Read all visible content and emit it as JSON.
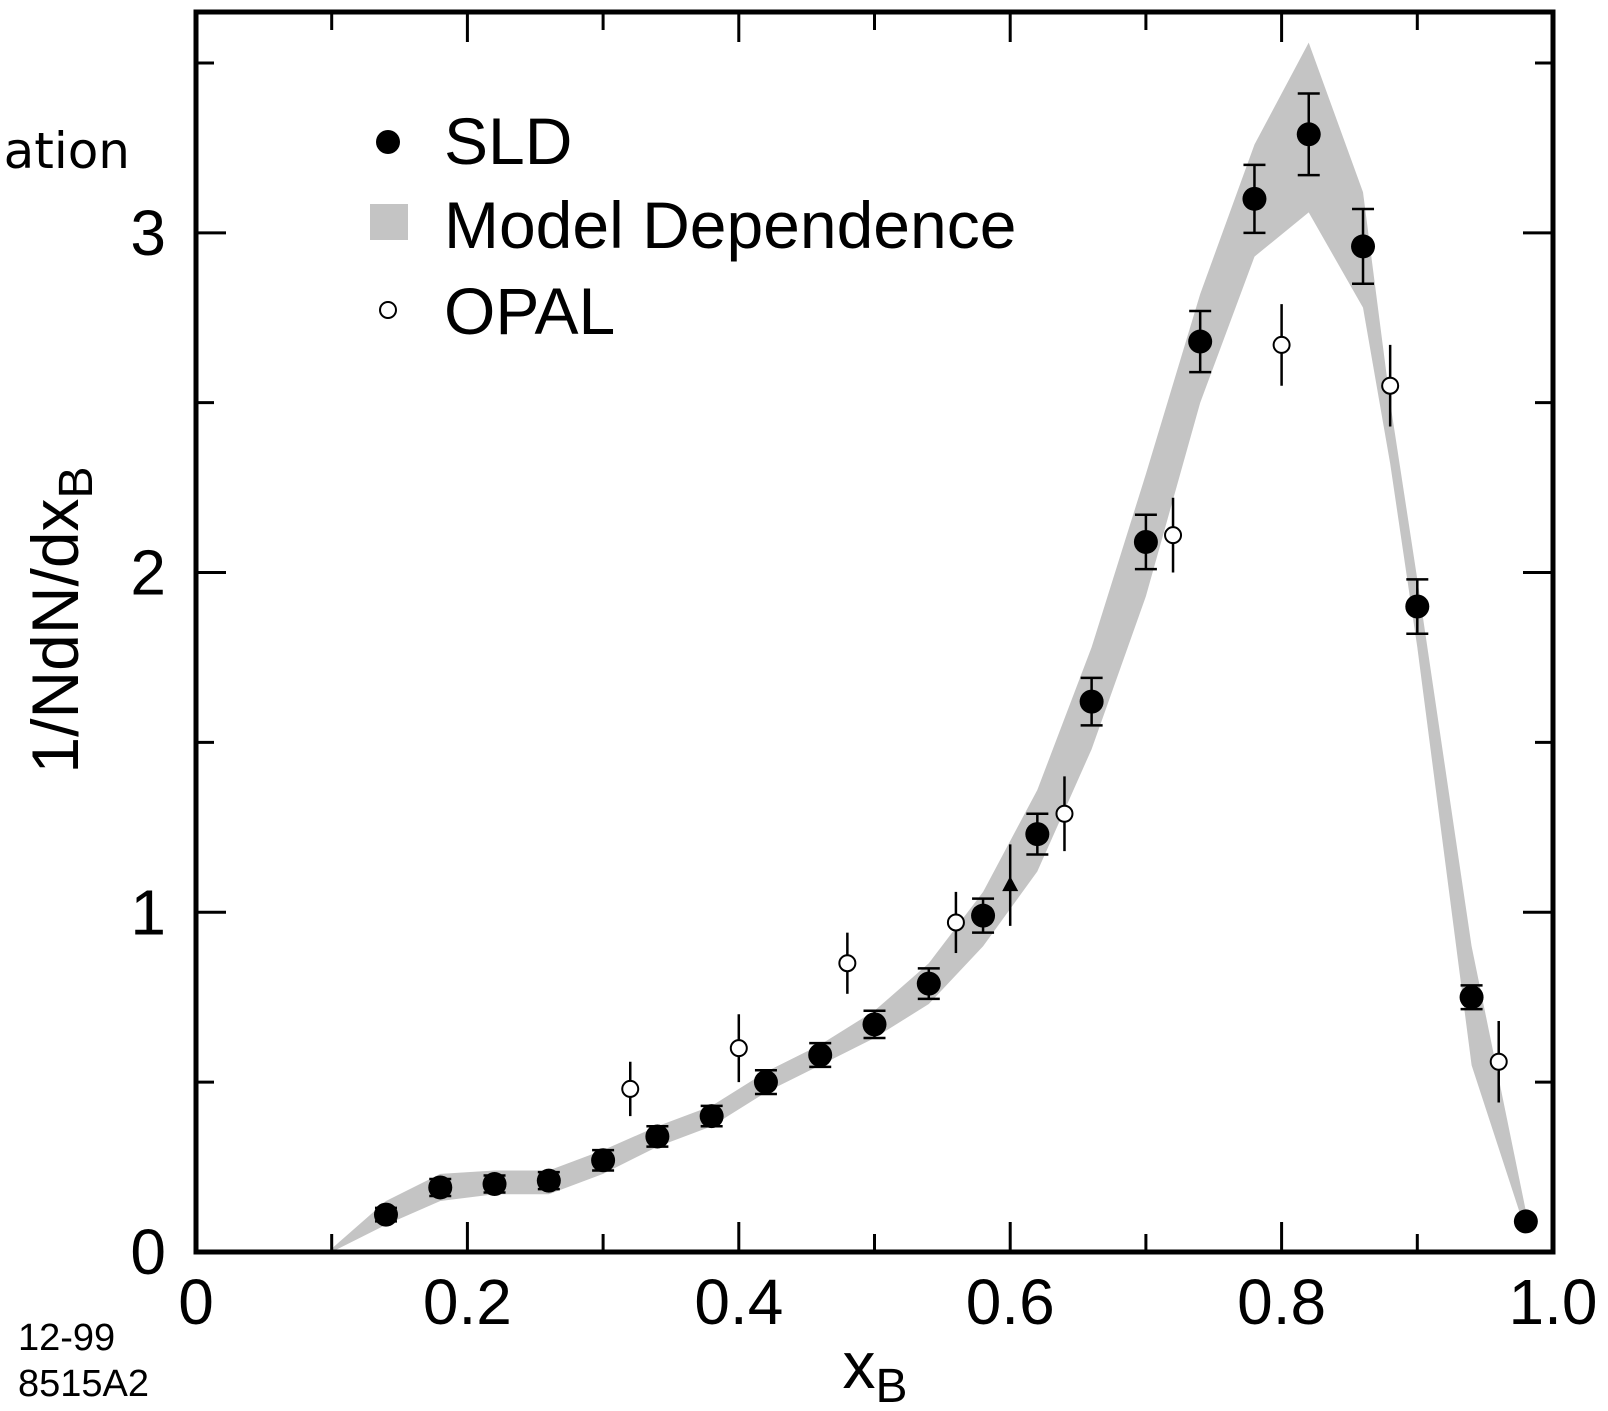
{
  "page_fragment": "ation",
  "figure_id": [
    "12-99",
    "8515A2"
  ],
  "chart_data": {
    "type": "scatter",
    "xlabel": "x",
    "xlabel_sub": "B",
    "ylabel": "1/NdN/dx",
    "ylabel_sub": "B",
    "xlim": [
      0,
      1.0
    ],
    "ylim": [
      0,
      3.65
    ],
    "x_ticks": [
      0,
      0.2,
      0.4,
      0.6,
      0.8,
      1.0
    ],
    "x_tick_labels": [
      "0",
      "0.2",
      "0.4",
      "0.6",
      "0.8",
      "1.0"
    ],
    "y_ticks": [
      0,
      1,
      2,
      3
    ],
    "y_tick_labels": [
      "0",
      "1",
      "2",
      "3"
    ],
    "legend_position": "top-left",
    "colors": {
      "band": "#c4c4c4",
      "points": "#000000",
      "axes": "#000000"
    },
    "series": [
      {
        "name": "SLD",
        "marker": "filled-circle",
        "points": [
          {
            "x": 0.14,
            "y": 0.11,
            "err": 0.02
          },
          {
            "x": 0.18,
            "y": 0.19,
            "err": 0.025
          },
          {
            "x": 0.22,
            "y": 0.2,
            "err": 0.025
          },
          {
            "x": 0.26,
            "y": 0.21,
            "err": 0.025
          },
          {
            "x": 0.3,
            "y": 0.27,
            "err": 0.03
          },
          {
            "x": 0.34,
            "y": 0.34,
            "err": 0.03
          },
          {
            "x": 0.38,
            "y": 0.4,
            "err": 0.03
          },
          {
            "x": 0.42,
            "y": 0.5,
            "err": 0.035
          },
          {
            "x": 0.46,
            "y": 0.58,
            "err": 0.035
          },
          {
            "x": 0.5,
            "y": 0.67,
            "err": 0.04
          },
          {
            "x": 0.54,
            "y": 0.79,
            "err": 0.045
          },
          {
            "x": 0.58,
            "y": 0.99,
            "err": 0.05
          },
          {
            "x": 0.62,
            "y": 1.23,
            "err": 0.06
          },
          {
            "x": 0.66,
            "y": 1.62,
            "err": 0.07
          },
          {
            "x": 0.7,
            "y": 2.09,
            "err": 0.08
          },
          {
            "x": 0.74,
            "y": 2.68,
            "err": 0.09
          },
          {
            "x": 0.78,
            "y": 3.1,
            "err": 0.1
          },
          {
            "x": 0.82,
            "y": 3.29,
            "err": 0.12
          },
          {
            "x": 0.86,
            "y": 2.96,
            "err": 0.11
          },
          {
            "x": 0.9,
            "y": 1.9,
            "err": 0.08
          },
          {
            "x": 0.94,
            "y": 0.75,
            "err": 0.035
          },
          {
            "x": 0.98,
            "y": 0.09,
            "err": 0.0
          }
        ]
      },
      {
        "name": "Model Dependence",
        "marker": "band",
        "band": {
          "x": [
            0.1,
            0.14,
            0.18,
            0.22,
            0.26,
            0.3,
            0.34,
            0.38,
            0.42,
            0.46,
            0.5,
            0.54,
            0.58,
            0.62,
            0.66,
            0.7,
            0.74,
            0.78,
            0.82,
            0.86,
            0.88,
            0.9,
            0.94,
            0.98
          ],
          "upper": [
            0.01,
            0.15,
            0.23,
            0.24,
            0.24,
            0.3,
            0.37,
            0.43,
            0.53,
            0.61,
            0.71,
            0.85,
            1.06,
            1.36,
            1.78,
            2.29,
            2.82,
            3.26,
            3.56,
            3.12,
            2.5,
            1.98,
            0.9,
            0.12
          ],
          "lower": [
            0.0,
            0.08,
            0.15,
            0.17,
            0.17,
            0.23,
            0.31,
            0.37,
            0.47,
            0.55,
            0.63,
            0.73,
            0.9,
            1.12,
            1.48,
            1.93,
            2.5,
            2.93,
            3.06,
            2.78,
            2.32,
            1.78,
            0.55,
            0.06
          ]
        }
      },
      {
        "name": "OPAL",
        "marker": "open-circle",
        "points": [
          {
            "x": 0.32,
            "y": 0.48,
            "err": 0.08
          },
          {
            "x": 0.4,
            "y": 0.6,
            "err": 0.1
          },
          {
            "x": 0.48,
            "y": 0.85,
            "err": 0.09
          },
          {
            "x": 0.56,
            "y": 0.97,
            "err": 0.09
          },
          {
            "x": 0.64,
            "y": 1.29,
            "err": 0.11
          },
          {
            "x": 0.72,
            "y": 2.11,
            "err": 0.11
          },
          {
            "x": 0.8,
            "y": 2.67,
            "err": 0.12
          },
          {
            "x": 0.88,
            "y": 2.55,
            "err": 0.12
          },
          {
            "x": 0.96,
            "y": 0.56,
            "err": 0.12
          }
        ]
      },
      {
        "marker": "filled-triangle",
        "points": [
          {
            "x": 0.6,
            "y": 1.08,
            "err": 0.12
          }
        ]
      }
    ]
  }
}
